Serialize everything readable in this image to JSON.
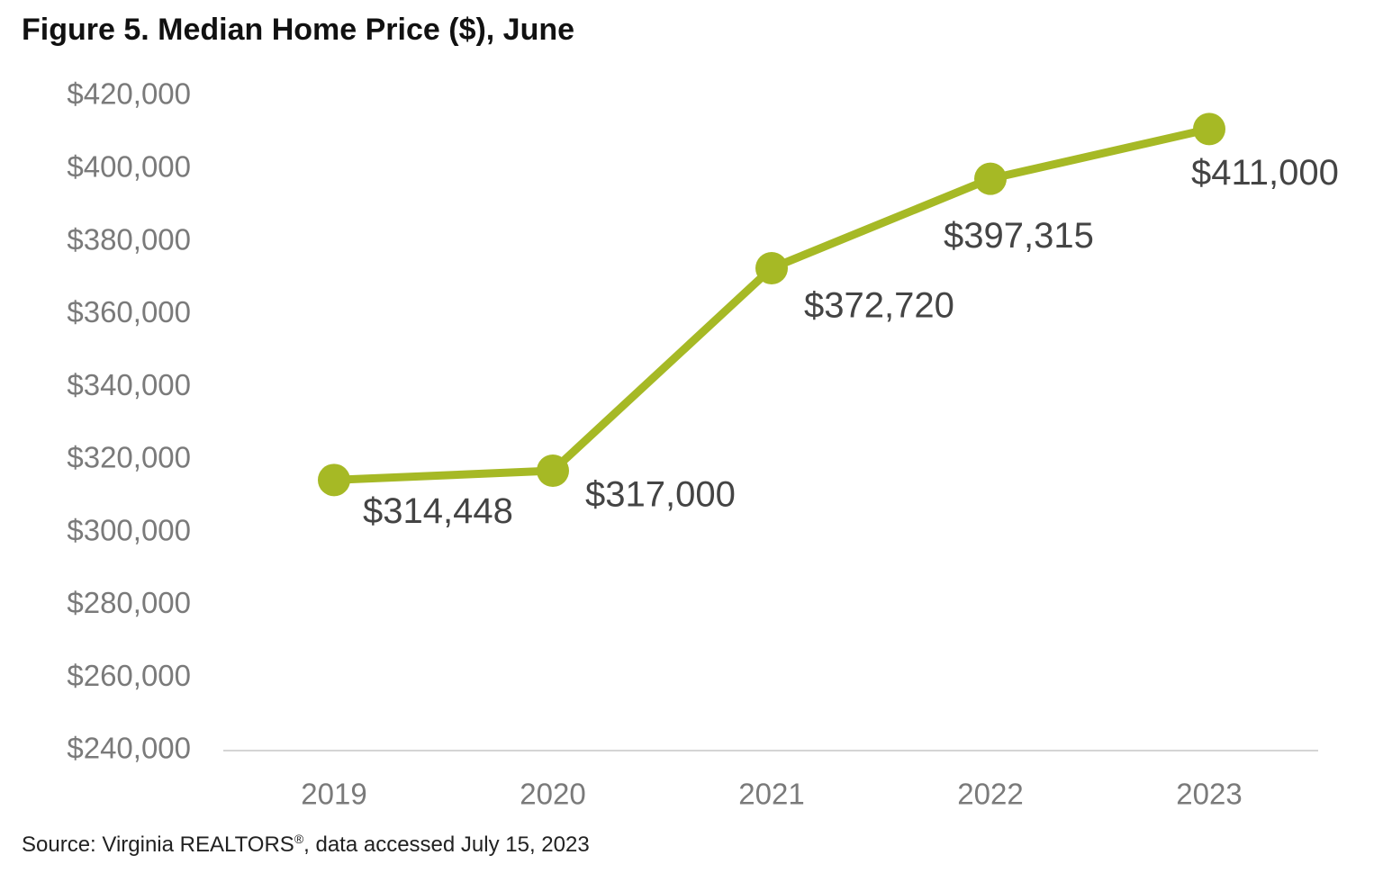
{
  "chart_data": {
    "type": "line",
    "title": "Figure 5. Median Home Price ($), June",
    "categories": [
      "2019",
      "2020",
      "2021",
      "2022",
      "2023"
    ],
    "series": [
      {
        "name": "Median Home Price",
        "values": [
          314448,
          317000,
          372720,
          397315,
          411000
        ],
        "data_labels": [
          "$314,448",
          "$317,000",
          "$372,720",
          "$397,315",
          "$411,000"
        ],
        "color": "#a6b925"
      }
    ],
    "y_ticks": [
      "$420,000",
      "$400,000",
      "$380,000",
      "$360,000",
      "$340,000",
      "$320,000",
      "$300,000",
      "$280,000",
      "$260,000",
      "$240,000"
    ],
    "ylim": [
      240000,
      420000
    ],
    "xlabel": "",
    "ylabel": "",
    "grid": false,
    "source": "Source: Virginia REALTORS",
    "source_mark": "®",
    "source_tail": ", data accessed July 15, 2023"
  }
}
